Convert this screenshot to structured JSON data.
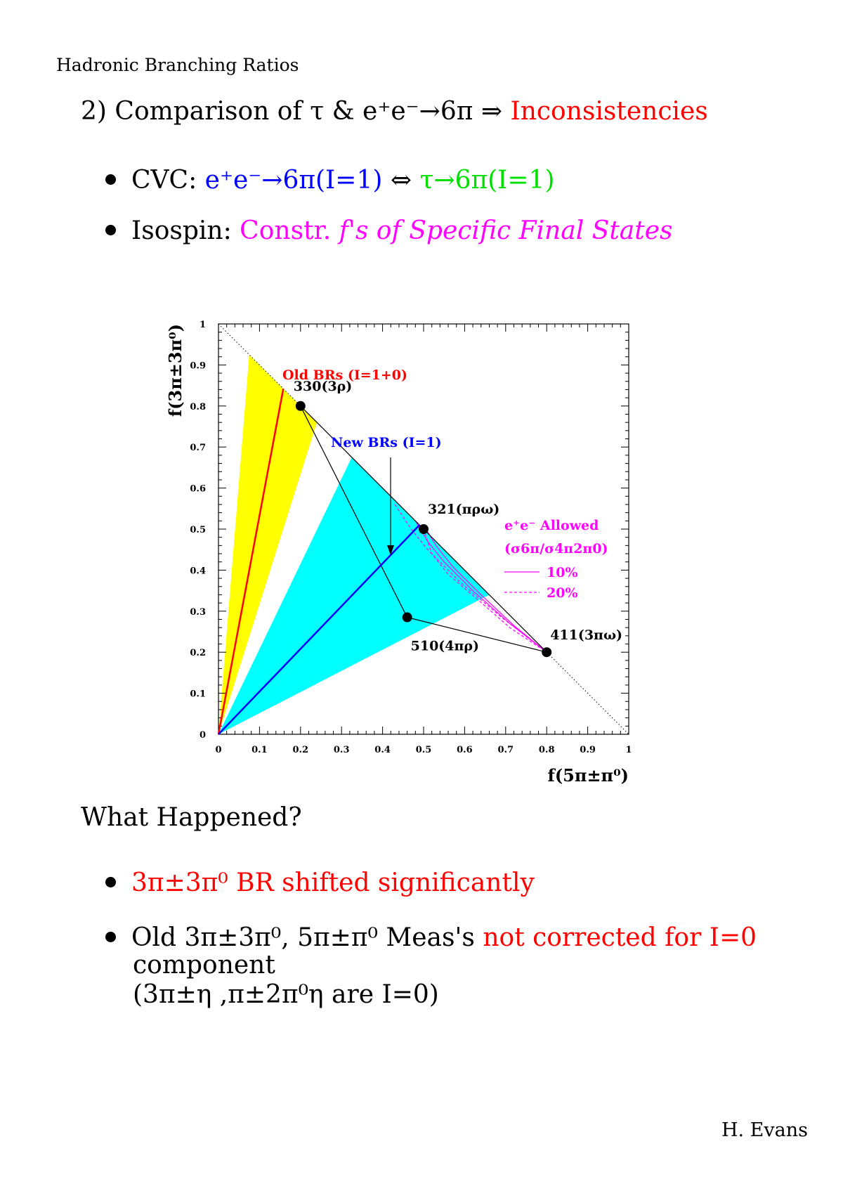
{
  "header": {
    "title": "Hadronic Branching Ratios",
    "footer": "H. Evans"
  },
  "heading": {
    "number": "2)",
    "text": "Comparison of τ & e⁺e⁻→6π ⇒",
    "highlight": "Inconsistencies"
  },
  "bullets_top": [
    {
      "label": "CVC:",
      "part1": "e⁺e⁻→6π(I=1)",
      "arrow": "⇔",
      "part2": "τ→6π(I=1)"
    },
    {
      "label": "Isospin:",
      "part1": "Constr.",
      "part2": "f's of Specific Final States"
    }
  ],
  "what_happened": "What Happened?",
  "bullets_bottom": [
    {
      "text": "3π±3π⁰ BR shifted significantly"
    },
    {
      "line1a": "Old 3π±3π⁰, 5π±π⁰ Meas's",
      "line1b": "not corrected for I=0",
      "line2": "component",
      "line3": "(3π±η ,π±2π⁰η  are I=0)"
    }
  ],
  "chart_data": {
    "type": "scatter",
    "xlabel": "f(5π±π⁰)",
    "ylabel": "f(3π±3π⁰)",
    "xlim": [
      0,
      1
    ],
    "ylim": [
      0,
      1
    ],
    "x_ticks": [
      0,
      0.1,
      0.2,
      0.3,
      0.4,
      0.5,
      0.6,
      0.7,
      0.8,
      0.9,
      1
    ],
    "x_tick_labels": [
      "0",
      "0.1",
      "0.2",
      "0.3",
      "0.4",
      "0.5",
      "0.6",
      "0.7",
      "0.8",
      "0.9",
      "1"
    ],
    "y_ticks": [
      0,
      0.1,
      0.2,
      0.3,
      0.4,
      0.5,
      0.6,
      0.7,
      0.8,
      0.9,
      1
    ],
    "y_tick_labels": [
      "0",
      "0.1",
      "0.2",
      "0.3",
      "0.4",
      "0.5",
      "0.6",
      "0.7",
      "0.8",
      "0.9",
      "1"
    ],
    "points": [
      {
        "label": "330(3ρ)",
        "x": 0.2,
        "y": 0.8
      },
      {
        "label": "321(πρω)",
        "x": 0.5,
        "y": 0.5
      },
      {
        "label": "411(3πω)",
        "x": 0.8,
        "y": 0.2
      },
      {
        "label": "510(4πρ)",
        "x": 0.46,
        "y": 0.285
      }
    ],
    "triangle_path": [
      [
        0.2,
        0.8
      ],
      [
        0.46,
        0.285
      ],
      [
        0.8,
        0.2
      ],
      [
        0.2,
        0.8
      ]
    ],
    "diagonal": [
      [
        0,
        1
      ],
      [
        1,
        0
      ]
    ],
    "old_band": {
      "color": "#ffff00",
      "polygon": [
        [
          0,
          0
        ],
        [
          0.075,
          0.925
        ],
        [
          0.24,
          0.76
        ]
      ]
    },
    "new_band": {
      "color": "#00ffff",
      "polygon": [
        [
          0,
          0
        ],
        [
          0.325,
          0.675
        ],
        [
          0.66,
          0.34
        ]
      ]
    },
    "old_line": {
      "color": "#ff0000",
      "x": [
        0,
        0.158
      ],
      "y": [
        0,
        0.842
      ]
    },
    "new_line": {
      "color": "#0000ff",
      "x": [
        0,
        0.49
      ],
      "y": [
        0,
        0.51
      ]
    },
    "ee_curves": [
      {
        "style": "solid",
        "x": [
          0.48,
          0.51,
          0.55,
          0.62,
          0.71,
          0.8
        ],
        "y": [
          0.52,
          0.47,
          0.42,
          0.35,
          0.27,
          0.2
        ]
      },
      {
        "style": "solid",
        "x": [
          0.5,
          0.53,
          0.57,
          0.64,
          0.72,
          0.8
        ],
        "y": [
          0.51,
          0.46,
          0.41,
          0.34,
          0.265,
          0.2
        ]
      },
      {
        "style": "dashed",
        "x": [
          0.43,
          0.47,
          0.51,
          0.59,
          0.69,
          0.8
        ],
        "y": [
          0.56,
          0.5,
          0.45,
          0.37,
          0.285,
          0.2
        ]
      },
      {
        "style": "dashed",
        "x": [
          0.5,
          0.52,
          0.56,
          0.63,
          0.71,
          0.8
        ],
        "y": [
          0.5,
          0.44,
          0.39,
          0.33,
          0.26,
          0.2
        ]
      }
    ],
    "annotations": {
      "old": "Old BRs (I=1+0)",
      "new": "New BRs (I=1)",
      "ee_allowed": "e⁺e⁻ Allowed",
      "ee_ratio": "(σ6π/σ4π2π0)",
      "legend_10": "10%",
      "legend_20": "20%"
    },
    "colors": {
      "ee": "#ff00ff",
      "old": "#ff0000",
      "new": "#0000ff"
    }
  }
}
